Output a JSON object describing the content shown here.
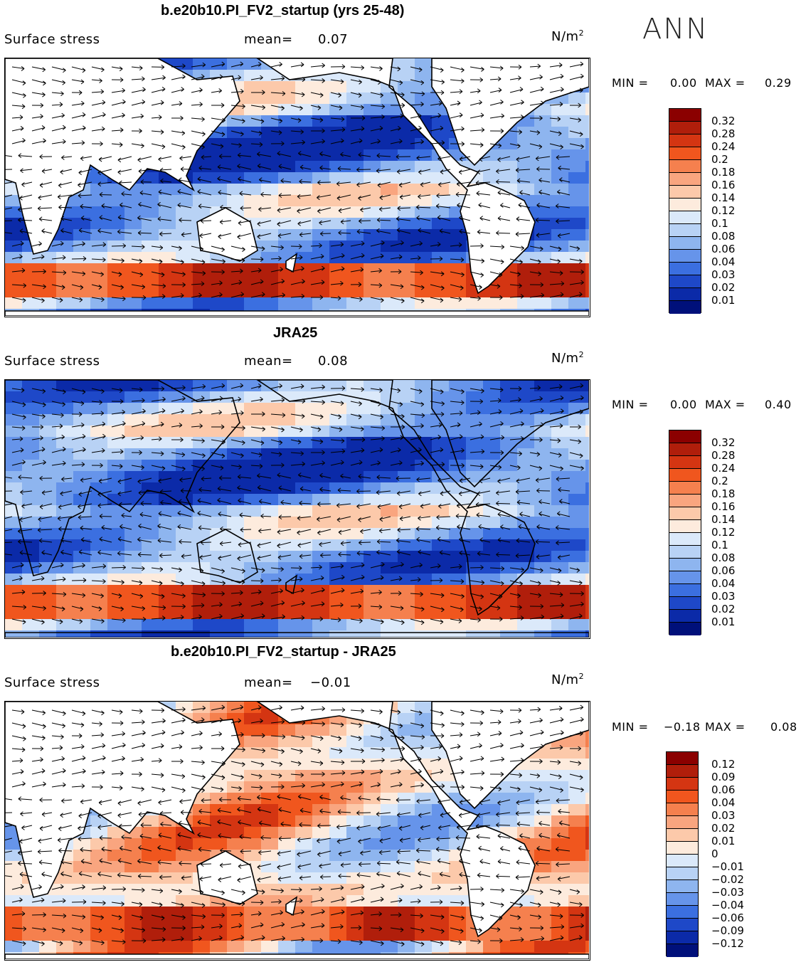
{
  "season": "ANN",
  "panels": [
    {
      "title": "b.e20b10.PI_FV2_startup (yrs 25-48)",
      "variable": "Surface stress",
      "mean_label": "mean=",
      "mean_value": "0.07",
      "units_base": "N/m",
      "units_exp": "2",
      "min_label": "MIN =",
      "min_value": "0.00",
      "max_label": "MAX =",
      "max_value": "0.29",
      "colorbar_ticks": [
        "0.32",
        "0.28",
        "0.24",
        "0.2",
        "0.18",
        "0.16",
        "0.14",
        "0.12",
        "0.1",
        "0.08",
        "0.06",
        "0.04",
        "0.03",
        "0.02",
        "0.01"
      ],
      "colorbar_colors": [
        "#8b0000",
        "#b01e0b",
        "#d43512",
        "#f0561e",
        "#f5804e",
        "#f9a57f",
        "#fcc9aa",
        "#fdebdd",
        "#dbe9fa",
        "#b8d2f5",
        "#8eb5ef",
        "#6694ea",
        "#3b6fe0",
        "#1e48c8",
        "#0b2aa8",
        "#00107a"
      ]
    },
    {
      "title": "JRA25",
      "variable": "Surface stress",
      "mean_label": "mean=",
      "mean_value": "0.08",
      "units_base": "N/m",
      "units_exp": "2",
      "min_label": "MIN =",
      "min_value": "0.00",
      "max_label": "MAX =",
      "max_value": "0.40",
      "colorbar_ticks": [
        "0.32",
        "0.28",
        "0.24",
        "0.2",
        "0.18",
        "0.16",
        "0.14",
        "0.12",
        "0.1",
        "0.08",
        "0.06",
        "0.04",
        "0.03",
        "0.02",
        "0.01"
      ],
      "colorbar_colors": [
        "#8b0000",
        "#b01e0b",
        "#d43512",
        "#f0561e",
        "#f5804e",
        "#f9a57f",
        "#fcc9aa",
        "#fdebdd",
        "#dbe9fa",
        "#b8d2f5",
        "#8eb5ef",
        "#6694ea",
        "#3b6fe0",
        "#1e48c8",
        "#0b2aa8",
        "#00107a"
      ]
    },
    {
      "title": "b.e20b10.PI_FV2_startup - JRA25",
      "variable": "Surface stress",
      "mean_label": "mean=",
      "mean_value": "−0.01",
      "units_base": "N/m",
      "units_exp": "2",
      "min_label": "MIN =",
      "min_value": "−0.18",
      "max_label": "MAX =",
      "max_value": "0.08",
      "colorbar_ticks": [
        "0.12",
        "0.09",
        "0.06",
        "0.04",
        "0.03",
        "0.02",
        "0.01",
        "0",
        "−0.01",
        "−0.02",
        "−0.03",
        "−0.04",
        "−0.06",
        "−0.09",
        "−0.12"
      ],
      "colorbar_colors": [
        "#8b0000",
        "#b01e0b",
        "#d43512",
        "#f0561e",
        "#f5804e",
        "#f9a57f",
        "#fcc9aa",
        "#fdebdd",
        "#dbe9fa",
        "#b8d2f5",
        "#8eb5ef",
        "#6694ea",
        "#3b6fe0",
        "#1e48c8",
        "#0b2aa8",
        "#00107a"
      ]
    }
  ]
}
